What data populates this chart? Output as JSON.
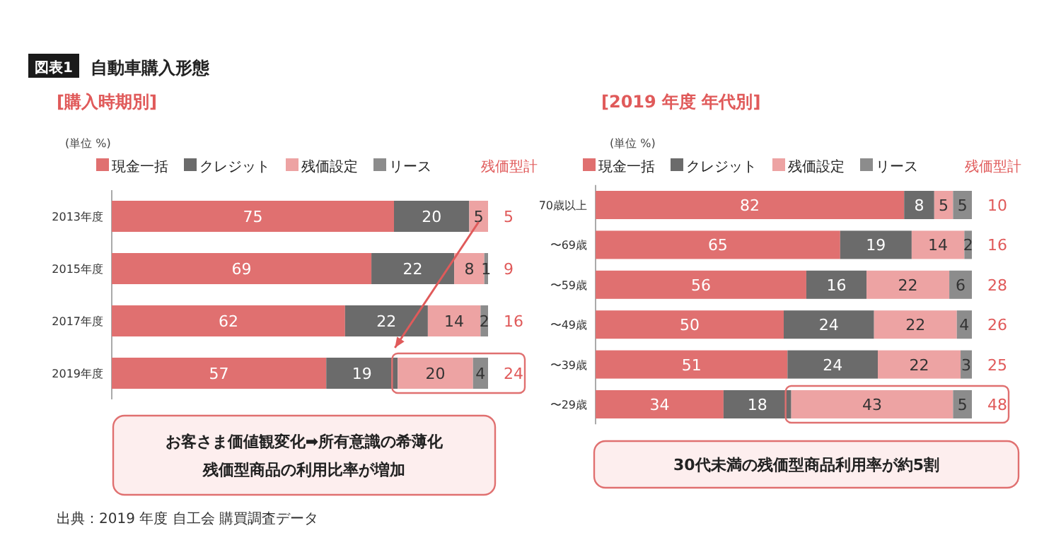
{
  "chart_data": [
    {
      "type": "other",
      "title": "自動車購入形態",
      "annotations": [
        "図表1",
        "出典：2019 年度 自工会 購買調査データ"
      ]
    },
    {
      "type": "bar",
      "orientation": "horizontal",
      "stacked": true,
      "title": "[購入時期別]",
      "subtitle": "(単位 %)",
      "legend": "top",
      "categories": [
        "2013年度",
        "2015年度",
        "2017年度",
        "2019年度"
      ],
      "series": [
        {
          "name": "現金一括",
          "color": "#e07070",
          "values": [
            75,
            69,
            62,
            57
          ],
          "value_labels": [
            "75",
            "69",
            "62",
            "57"
          ]
        },
        {
          "name": "クレジット",
          "color": "#6b6b6b",
          "values": [
            20,
            22,
            22,
            19
          ],
          "value_labels": [
            "20",
            "22",
            "22",
            "19"
          ]
        },
        {
          "name": "残価設定",
          "color": "#eda3a3",
          "values": [
            5,
            8,
            14,
            20
          ],
          "value_labels": [
            "5",
            "8",
            "14",
            "20"
          ]
        },
        {
          "name": "リース",
          "color": "#8c8c8c",
          "values": [
            0,
            1,
            2,
            4
          ],
          "value_labels": [
            null,
            "1",
            "2",
            "4"
          ]
        }
      ],
      "annotations": [
        "残価型計",
        "5",
        "9",
        "16",
        "24",
        "お客さま価値観変化➡所有意識の希薄化",
        "残価型商品の利用比率が増加"
      ]
    },
    {
      "type": "bar",
      "orientation": "horizontal",
      "stacked": true,
      "title": "[2019 年度 年代別]",
      "subtitle": "(単位 %)",
      "legend": "top",
      "categories": [
        "70歳以上",
        "〜69歳",
        "〜59歳",
        "〜49歳",
        "〜39歳",
        "〜29歳"
      ],
      "series": [
        {
          "name": "現金一括",
          "color": "#e07070",
          "values": [
            82,
            65,
            56,
            50,
            51,
            34
          ],
          "value_labels": [
            "82",
            "65",
            "56",
            "50",
            "51",
            "34"
          ]
        },
        {
          "name": "クレジット",
          "color": "#6b6b6b",
          "values": [
            8,
            19,
            16,
            24,
            24,
            18
          ],
          "value_labels": [
            "8",
            "19",
            "16",
            "24",
            "24",
            "18"
          ]
        },
        {
          "name": "残価設定",
          "color": "#eda3a3",
          "values": [
            5,
            14,
            22,
            22,
            22,
            43
          ],
          "value_labels": [
            "5",
            "14",
            "22",
            "22",
            "22",
            "43"
          ]
        },
        {
          "name": "リース",
          "color": "#8c8c8c",
          "values": [
            5,
            2,
            6,
            4,
            3,
            5
          ],
          "value_labels": [
            "5",
            "2",
            "6",
            "4",
            "3",
            "5"
          ]
        }
      ],
      "annotations": [
        "残価型計",
        "10",
        "16",
        "28",
        "26",
        "25",
        "48",
        "30代未満の残価型商品利用率が約5割"
      ]
    }
  ]
}
